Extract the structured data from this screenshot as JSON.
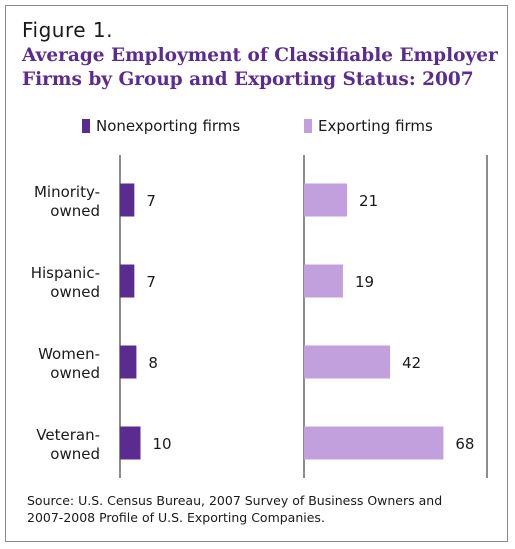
{
  "figure_label": "Figure 1.",
  "title_lines": [
    "Average Employment of Classifiable Employer",
    "Firms by Group and Exporting Status: 2007"
  ],
  "source_lines": [
    "Source: U.S. Census Bureau, 2007 Survey of Business Owners and",
    "2007-2008 Profile of U.S. Exporting Companies."
  ],
  "colors": {
    "nonexporting": "#5b2c8f",
    "exporting": "#c2a0de",
    "title": "#5b2c8f"
  },
  "chart_data": {
    "type": "bar",
    "orientation": "horizontal",
    "categories": [
      [
        "Minority-",
        "owned"
      ],
      [
        "Hispanic-",
        "owned"
      ],
      [
        "Women-",
        "owned"
      ],
      [
        "Veteran-",
        "owned"
      ]
    ],
    "series": [
      {
        "name": "Nonexporting firms",
        "values": [
          7,
          7,
          8,
          10
        ]
      },
      {
        "name": "Exporting firms",
        "values": [
          21,
          19,
          42,
          68
        ]
      }
    ],
    "legend": "top",
    "grid": false
  }
}
